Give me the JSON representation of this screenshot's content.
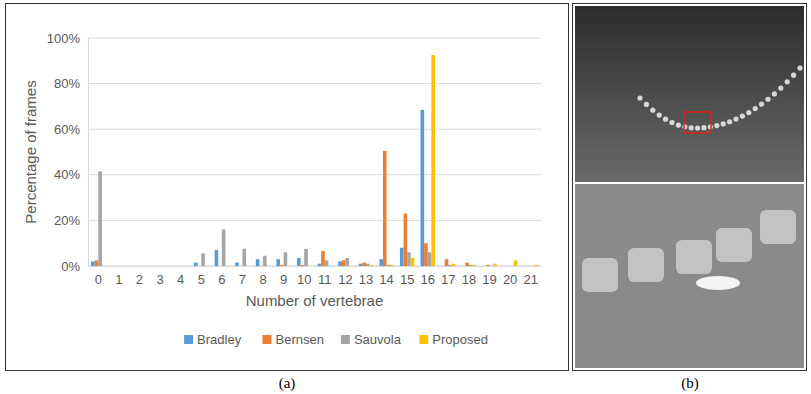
{
  "chart_data": {
    "type": "bar",
    "xlabel": "Number of vertebrae",
    "ylabel": "Percentage of frames",
    "categories": [
      "0",
      "1",
      "2",
      "3",
      "4",
      "5",
      "6",
      "7",
      "8",
      "9",
      "10",
      "11",
      "12",
      "13",
      "14",
      "15",
      "16",
      "17",
      "18",
      "19",
      "20",
      "21"
    ],
    "series": [
      {
        "name": "Bradley",
        "color": "#5b9bd5",
        "values": [
          2,
          0,
          0,
          0,
          0,
          1.5,
          7,
          1.5,
          3,
          3,
          3.5,
          1,
          2,
          1,
          3,
          8,
          68.5,
          0,
          0,
          0,
          0,
          0
        ]
      },
      {
        "name": "Bernsen",
        "color": "#ed7d31",
        "values": [
          2.5,
          0,
          0,
          0,
          0,
          0,
          0,
          0,
          0,
          0.5,
          0.5,
          6.5,
          2.5,
          1.5,
          50.5,
          23,
          10,
          3,
          1.5,
          0.5,
          0,
          0
        ]
      },
      {
        "name": "Sauvola",
        "color": "#a5a5a5",
        "values": [
          41.5,
          0,
          0,
          0,
          0,
          5.5,
          16,
          7.5,
          4.5,
          6,
          7.5,
          2.5,
          3.5,
          1,
          0.5,
          6,
          6,
          0.5,
          0.5,
          0,
          0,
          0
        ]
      },
      {
        "name": "Proposed",
        "color": "#ffc000",
        "values": [
          0,
          0,
          0,
          0,
          0,
          0,
          0,
          0,
          0,
          0,
          0,
          0,
          0,
          0.5,
          0.5,
          3.5,
          92.5,
          1,
          0.5,
          1,
          2.5,
          0.5
        ]
      }
    ],
    "ylim": [
      0,
      100
    ],
    "yticks": [
      {
        "value": 0,
        "label": "0%"
      },
      {
        "value": 20,
        "label": "20%"
      },
      {
        "value": 40,
        "label": "40%"
      },
      {
        "value": 60,
        "label": "60%"
      },
      {
        "value": 80,
        "label": "80%"
      },
      {
        "value": 100,
        "label": "100%"
      }
    ],
    "grid": true,
    "legend": "bottom"
  },
  "panels": [
    {
      "label": "(a)"
    },
    {
      "label": "(b)"
    }
  ]
}
